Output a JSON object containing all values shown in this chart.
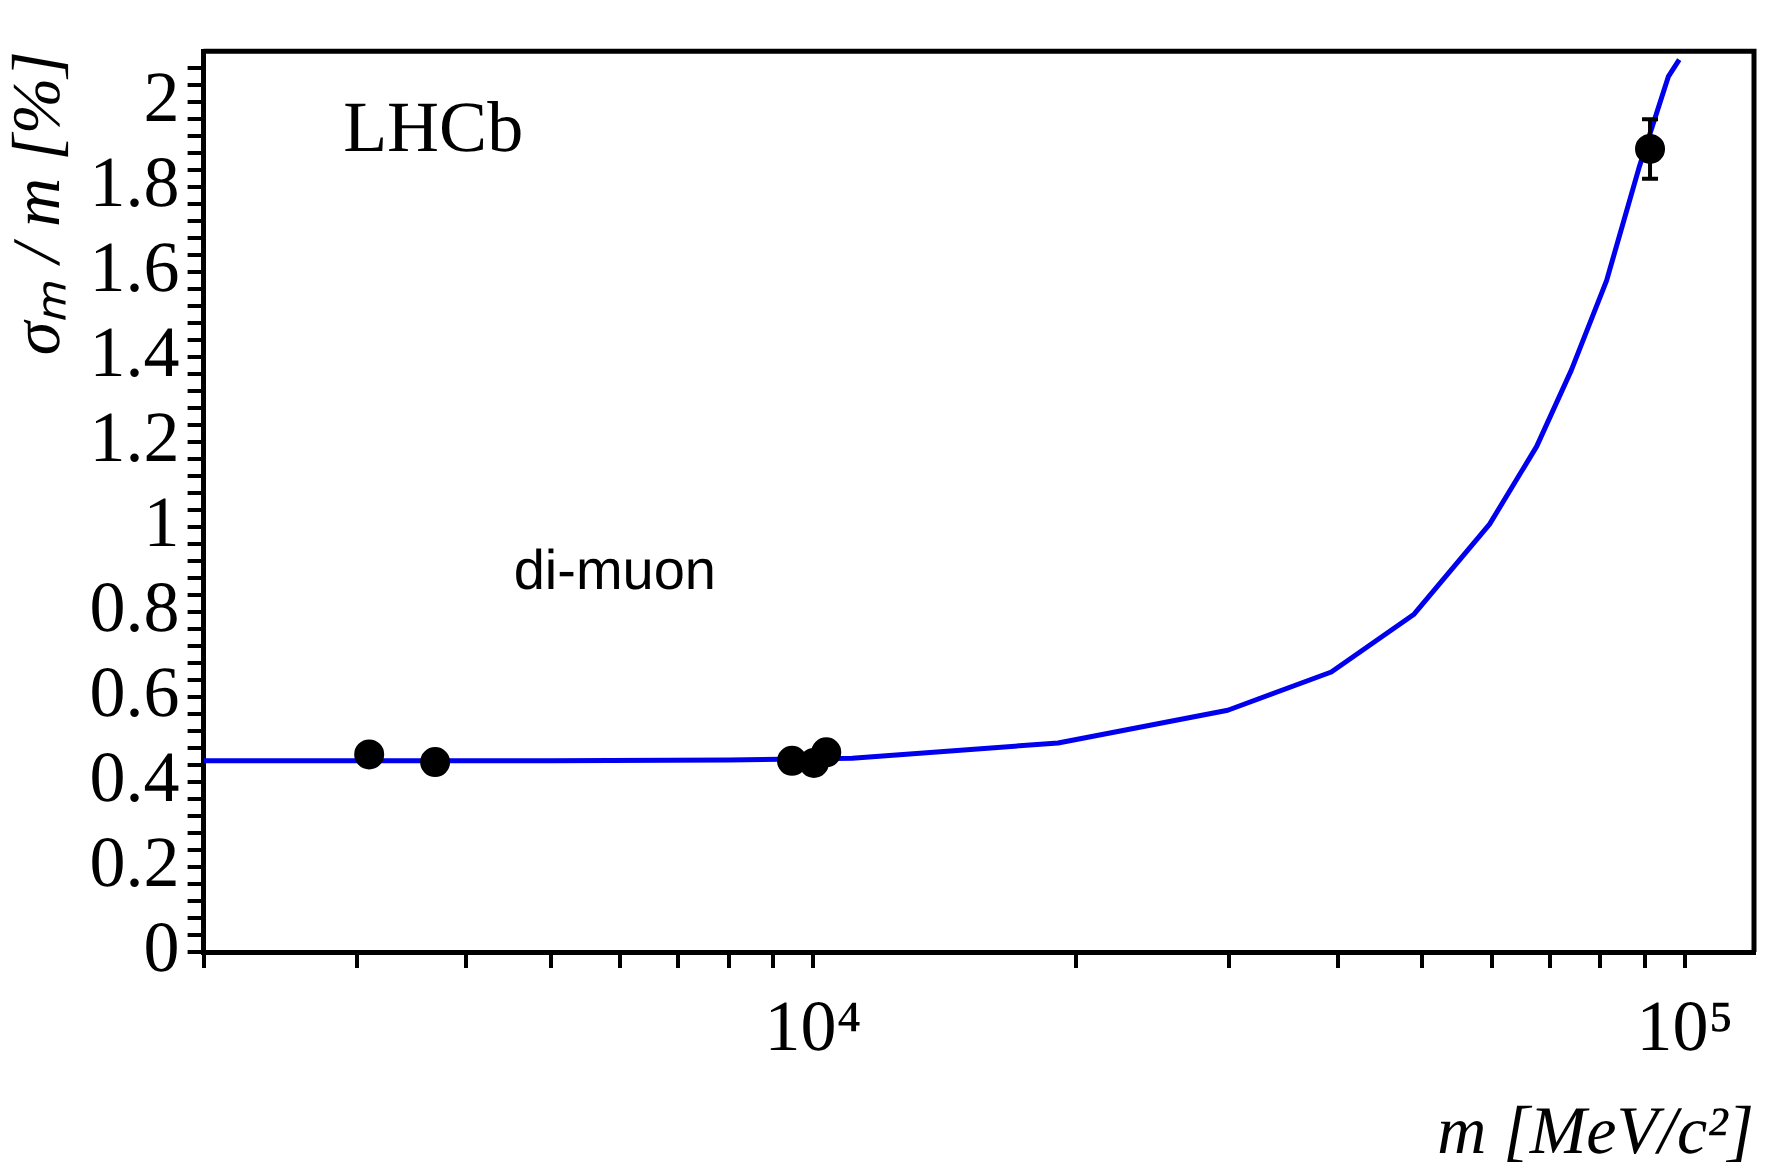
{
  "chart_data": {
    "type": "scatter",
    "xlabel": "m [MeV/c²]",
    "ylabel": "σₘ / m [%]",
    "annotations": [
      "LHCb",
      "di-muon"
    ],
    "log": "x",
    "xlim": [
      2000,
      120000
    ],
    "ylim": [
      0,
      2.12
    ],
    "xticks": [
      {
        "value": 2000,
        "label": null
      },
      {
        "value": 3000,
        "label": null
      },
      {
        "value": 4000,
        "label": null
      },
      {
        "value": 5000,
        "label": null
      },
      {
        "value": 6000,
        "label": null
      },
      {
        "value": 7000,
        "label": null
      },
      {
        "value": 8000,
        "label": null
      },
      {
        "value": 9000,
        "label": null
      },
      {
        "value": 10000,
        "label": "10⁴"
      },
      {
        "value": 20000,
        "label": null
      },
      {
        "value": 30000,
        "label": null
      },
      {
        "value": 40000,
        "label": null
      },
      {
        "value": 50000,
        "label": null
      },
      {
        "value": 60000,
        "label": null
      },
      {
        "value": 70000,
        "label": null
      },
      {
        "value": 80000,
        "label": null
      },
      {
        "value": 90000,
        "label": null
      },
      {
        "value": 100000,
        "label": "10⁵"
      }
    ],
    "yticks": [
      0,
      {
        "value": 0.04,
        "label": null
      },
      {
        "value": 0.08,
        "label": null
      },
      {
        "value": 0.12,
        "label": null
      },
      {
        "value": 0.16,
        "label": null
      },
      0.2,
      {
        "value": 0.24,
        "label": null
      },
      {
        "value": 0.28,
        "label": null
      },
      {
        "value": 0.32,
        "label": null
      },
      {
        "value": 0.36,
        "label": null
      },
      0.4,
      {
        "value": 0.44,
        "label": null
      },
      {
        "value": 0.48,
        "label": null
      },
      {
        "value": 0.52,
        "label": null
      },
      {
        "value": 0.56,
        "label": null
      },
      0.6,
      {
        "value": 0.64,
        "label": null
      },
      {
        "value": 0.68,
        "label": null
      },
      {
        "value": 0.72,
        "label": null
      },
      {
        "value": 0.76,
        "label": null
      },
      0.8,
      {
        "value": 0.84,
        "label": null
      },
      {
        "value": 0.88,
        "label": null
      },
      {
        "value": 0.92,
        "label": null
      },
      {
        "value": 0.96,
        "label": null
      },
      1,
      {
        "value": 1.04,
        "label": null
      },
      {
        "value": 1.08,
        "label": null
      },
      {
        "value": 1.12,
        "label": null
      },
      {
        "value": 1.16,
        "label": null
      },
      1.2,
      {
        "value": 1.24,
        "label": null
      },
      {
        "value": 1.28,
        "label": null
      },
      {
        "value": 1.32,
        "label": null
      },
      {
        "value": 1.36,
        "label": null
      },
      1.4,
      {
        "value": 1.44,
        "label": null
      },
      {
        "value": 1.48,
        "label": null
      },
      {
        "value": 1.52,
        "label": null
      },
      {
        "value": 1.56,
        "label": null
      },
      1.6,
      {
        "value": 1.64,
        "label": null
      },
      {
        "value": 1.68,
        "label": null
      },
      {
        "value": 1.72,
        "label": null
      },
      {
        "value": 1.76,
        "label": null
      },
      1.8,
      {
        "value": 1.84,
        "label": null
      },
      {
        "value": 1.88,
        "label": null
      },
      {
        "value": 1.92,
        "label": null
      },
      {
        "value": 1.96,
        "label": null
      },
      2,
      {
        "value": 2.04,
        "label": null
      },
      {
        "value": 2.08,
        "label": null
      }
    ],
    "marker": "circle",
    "grid": false,
    "legend": false,
    "series": [
      {
        "color": "#000000",
        "x": [
          3097,
          3686,
          9460,
          10023,
          10355,
          91188
        ],
        "values": [
          0.465,
          0.447,
          0.45,
          0.445,
          0.47,
          1.89
        ],
        "errors": [
          null,
          null,
          null,
          null,
          null,
          0.07
        ]
      },
      {
        "type": "line",
        "color": "#0000ee",
        "marker": "none",
        "x": [
          2000,
          5000,
          8000,
          11090,
          19100,
          29900,
          39300,
          48900,
          59700,
          67600,
          74100,
          81300,
          88700,
          95700,
          98500
        ],
        "values": [
          0.45,
          0.45,
          0.452,
          0.456,
          0.492,
          0.569,
          0.659,
          0.795,
          1.007,
          1.19,
          1.37,
          1.58,
          1.85,
          2.06,
          2.1
        ]
      }
    ]
  }
}
